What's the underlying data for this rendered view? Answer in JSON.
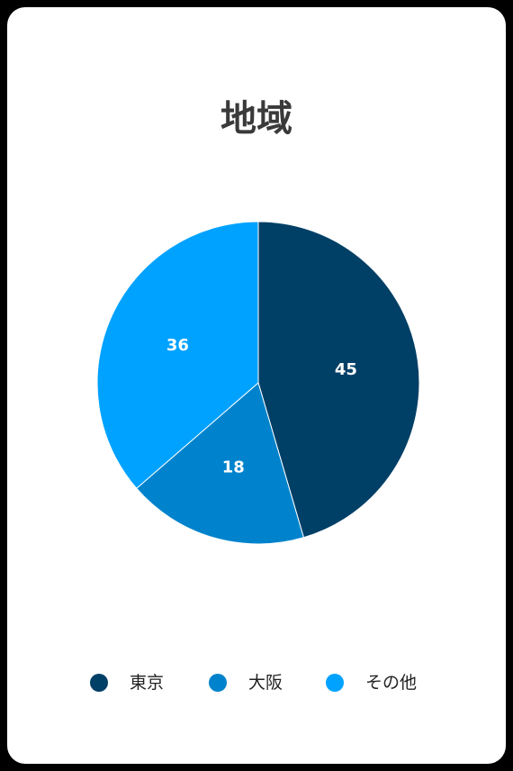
{
  "chart_data": {
    "type": "pie",
    "title": "地域",
    "categories": [
      "東京",
      "大阪",
      "その他"
    ],
    "values": [
      45,
      18,
      36
    ],
    "colors": [
      "#003f66",
      "#0083cc",
      "#00a2ff"
    ],
    "legend_position": "bottom",
    "data_labels": true
  }
}
